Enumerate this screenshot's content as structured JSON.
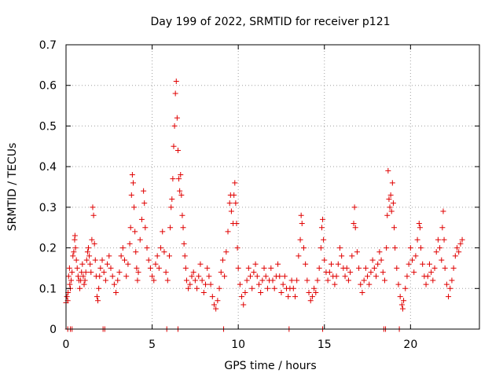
{
  "chart_data": {
    "type": "scatter",
    "title": "Day 199 of 2022, SRMTID for receiver p121",
    "xlabel": "GPS time / hours",
    "ylabel": "SRMTID / TECUs",
    "xlim": [
      0,
      24
    ],
    "ylim": [
      0,
      0.7
    ],
    "xticks": [
      0,
      5,
      10,
      15,
      20
    ],
    "xtick_labels": [
      "0",
      "5",
      "10",
      "15",
      "20"
    ],
    "yticks": [
      0,
      0.1,
      0.2,
      0.3,
      0.4,
      0.5,
      0.6,
      0.7
    ],
    "ytick_labels": [
      "0",
      "0.1",
      "0.2",
      "0.3",
      "0.4",
      "0.5",
      "0.6",
      "0.7"
    ],
    "grid": true,
    "marker": "plus",
    "marker_color": "#e00000",
    "series": [
      {
        "name": "SRMTID",
        "points": [
          [
            0.0,
            0.065
          ],
          [
            0.05,
            0.08
          ],
          [
            0.1,
            0.07
          ],
          [
            0.12,
            0.09
          ],
          [
            0.15,
            0.13
          ],
          [
            0.2,
            0.15
          ],
          [
            0.22,
            0.11
          ],
          [
            0.25,
            0.1
          ],
          [
            0.3,
            0.12
          ],
          [
            0.35,
            0.14
          ],
          [
            0.4,
            0.18
          ],
          [
            0.45,
            0.19
          ],
          [
            0.5,
            0.22
          ],
          [
            0.52,
            0.23
          ],
          [
            0.55,
            0.2
          ],
          [
            0.6,
            0.17
          ],
          [
            0.65,
            0.15
          ],
          [
            0.7,
            0.13
          ],
          [
            0.75,
            0.12
          ],
          [
            0.8,
            0.1
          ],
          [
            0.85,
            0.12
          ],
          [
            0.9,
            0.14
          ],
          [
            0.95,
            0.16
          ],
          [
            1.0,
            0.13
          ],
          [
            1.05,
            0.11
          ],
          [
            1.1,
            0.12
          ],
          [
            1.15,
            0.14
          ],
          [
            1.2,
            0.17
          ],
          [
            1.25,
            0.19
          ],
          [
            1.3,
            0.2
          ],
          [
            1.35,
            0.18
          ],
          [
            1.4,
            0.16
          ],
          [
            1.45,
            0.14
          ],
          [
            1.5,
            0.22
          ],
          [
            1.55,
            0.3
          ],
          [
            1.6,
            0.28
          ],
          [
            1.65,
            0.21
          ],
          [
            1.7,
            0.17
          ],
          [
            1.75,
            0.13
          ],
          [
            1.8,
            0.08
          ],
          [
            1.85,
            0.07
          ],
          [
            1.9,
            0.1
          ],
          [
            1.95,
            0.13
          ],
          [
            2.0,
            0.15
          ],
          [
            2.1,
            0.17
          ],
          [
            2.2,
            0.14
          ],
          [
            2.3,
            0.12
          ],
          [
            2.4,
            0.16
          ],
          [
            2.5,
            0.18
          ],
          [
            2.6,
            0.15
          ],
          [
            2.7,
            0.13
          ],
          [
            2.8,
            0.11
          ],
          [
            2.9,
            0.09
          ],
          [
            3.0,
            0.12
          ],
          [
            3.1,
            0.14
          ],
          [
            3.2,
            0.18
          ],
          [
            3.3,
            0.2
          ],
          [
            3.4,
            0.17
          ],
          [
            3.5,
            0.13
          ],
          [
            3.6,
            0.16
          ],
          [
            3.7,
            0.21
          ],
          [
            3.75,
            0.25
          ],
          [
            3.8,
            0.33
          ],
          [
            3.85,
            0.38
          ],
          [
            3.9,
            0.36
          ],
          [
            3.95,
            0.3
          ],
          [
            4.0,
            0.24
          ],
          [
            4.05,
            0.19
          ],
          [
            4.1,
            0.15
          ],
          [
            4.15,
            0.12
          ],
          [
            4.2,
            0.14
          ],
          [
            4.3,
            0.22
          ],
          [
            4.4,
            0.27
          ],
          [
            4.5,
            0.34
          ],
          [
            4.55,
            0.31
          ],
          [
            4.6,
            0.25
          ],
          [
            4.7,
            0.2
          ],
          [
            4.8,
            0.17
          ],
          [
            4.9,
            0.15
          ],
          [
            5.0,
            0.13
          ],
          [
            5.1,
            0.12
          ],
          [
            5.2,
            0.16
          ],
          [
            5.3,
            0.18
          ],
          [
            5.4,
            0.15
          ],
          [
            5.5,
            0.2
          ],
          [
            5.6,
            0.24
          ],
          [
            5.7,
            0.19
          ],
          [
            5.8,
            0.14
          ],
          [
            5.9,
            0.12
          ],
          [
            6.0,
            0.18
          ],
          [
            6.05,
            0.25
          ],
          [
            6.1,
            0.3
          ],
          [
            6.15,
            0.32
          ],
          [
            6.2,
            0.37
          ],
          [
            6.25,
            0.45
          ],
          [
            6.3,
            0.5
          ],
          [
            6.35,
            0.58
          ],
          [
            6.4,
            0.61
          ],
          [
            6.45,
            0.52
          ],
          [
            6.5,
            0.44
          ],
          [
            6.55,
            0.37
          ],
          [
            6.6,
            0.34
          ],
          [
            6.65,
            0.38
          ],
          [
            6.7,
            0.33
          ],
          [
            6.75,
            0.28
          ],
          [
            6.8,
            0.25
          ],
          [
            6.85,
            0.21
          ],
          [
            6.9,
            0.18
          ],
          [
            6.95,
            0.15
          ],
          [
            7.0,
            0.12
          ],
          [
            7.1,
            0.1
          ],
          [
            7.2,
            0.11
          ],
          [
            7.3,
            0.13
          ],
          [
            7.4,
            0.14
          ],
          [
            7.5,
            0.12
          ],
          [
            7.6,
            0.1
          ],
          [
            7.7,
            0.13
          ],
          [
            7.8,
            0.16
          ],
          [
            7.9,
            0.12
          ],
          [
            8.0,
            0.09
          ],
          [
            8.1,
            0.11
          ],
          [
            8.2,
            0.15
          ],
          [
            8.3,
            0.13
          ],
          [
            8.4,
            0.11
          ],
          [
            8.5,
            0.08
          ],
          [
            8.6,
            0.06
          ],
          [
            8.7,
            0.05
          ],
          [
            8.8,
            0.07
          ],
          [
            8.9,
            0.1
          ],
          [
            9.0,
            0.14
          ],
          [
            9.1,
            0.17
          ],
          [
            9.2,
            0.13
          ],
          [
            9.3,
            0.19
          ],
          [
            9.4,
            0.24
          ],
          [
            9.5,
            0.31
          ],
          [
            9.55,
            0.33
          ],
          [
            9.6,
            0.29
          ],
          [
            9.7,
            0.26
          ],
          [
            9.75,
            0.33
          ],
          [
            9.8,
            0.36
          ],
          [
            9.85,
            0.31
          ],
          [
            9.9,
            0.26
          ],
          [
            9.95,
            0.2
          ],
          [
            10.0,
            0.15
          ],
          [
            10.1,
            0.11
          ],
          [
            10.2,
            0.08
          ],
          [
            10.3,
            0.06
          ],
          [
            10.4,
            0.09
          ],
          [
            10.5,
            0.12
          ],
          [
            10.6,
            0.15
          ],
          [
            10.7,
            0.13
          ],
          [
            10.8,
            0.1
          ],
          [
            10.9,
            0.14
          ],
          [
            11.0,
            0.16
          ],
          [
            11.1,
            0.13
          ],
          [
            11.2,
            0.11
          ],
          [
            11.3,
            0.09
          ],
          [
            11.4,
            0.12
          ],
          [
            11.5,
            0.15
          ],
          [
            11.6,
            0.13
          ],
          [
            11.7,
            0.1
          ],
          [
            11.8,
            0.12
          ],
          [
            11.9,
            0.15
          ],
          [
            12.0,
            0.12
          ],
          [
            12.1,
            0.1
          ],
          [
            12.2,
            0.13
          ],
          [
            12.3,
            0.16
          ],
          [
            12.4,
            0.13
          ],
          [
            12.5,
            0.09
          ],
          [
            12.6,
            0.11
          ],
          [
            12.7,
            0.13
          ],
          [
            12.8,
            0.1
          ],
          [
            12.9,
            0.08
          ],
          [
            13.0,
            0.1
          ],
          [
            13.1,
            0.12
          ],
          [
            13.2,
            0.1
          ],
          [
            13.3,
            0.08
          ],
          [
            13.4,
            0.12
          ],
          [
            13.5,
            0.18
          ],
          [
            13.6,
            0.22
          ],
          [
            13.65,
            0.28
          ],
          [
            13.7,
            0.26
          ],
          [
            13.8,
            0.2
          ],
          [
            13.9,
            0.16
          ],
          [
            14.0,
            0.12
          ],
          [
            14.1,
            0.09
          ],
          [
            14.2,
            0.07
          ],
          [
            14.3,
            0.08
          ],
          [
            14.4,
            0.1
          ],
          [
            14.5,
            0.09
          ],
          [
            14.6,
            0.12
          ],
          [
            14.7,
            0.15
          ],
          [
            14.8,
            0.2
          ],
          [
            14.85,
            0.25
          ],
          [
            14.9,
            0.27
          ],
          [
            14.95,
            0.22
          ],
          [
            15.0,
            0.17
          ],
          [
            15.1,
            0.14
          ],
          [
            15.2,
            0.12
          ],
          [
            15.3,
            0.14
          ],
          [
            15.4,
            0.16
          ],
          [
            15.5,
            0.13
          ],
          [
            15.6,
            0.11
          ],
          [
            15.7,
            0.13
          ],
          [
            15.8,
            0.16
          ],
          [
            15.9,
            0.2
          ],
          [
            16.0,
            0.18
          ],
          [
            16.1,
            0.15
          ],
          [
            16.2,
            0.13
          ],
          [
            16.3,
            0.15
          ],
          [
            16.4,
            0.12
          ],
          [
            16.5,
            0.14
          ],
          [
            16.6,
            0.18
          ],
          [
            16.7,
            0.26
          ],
          [
            16.75,
            0.3
          ],
          [
            16.8,
            0.25
          ],
          [
            16.9,
            0.19
          ],
          [
            17.0,
            0.15
          ],
          [
            17.1,
            0.11
          ],
          [
            17.2,
            0.09
          ],
          [
            17.3,
            0.12
          ],
          [
            17.4,
            0.15
          ],
          [
            17.5,
            0.13
          ],
          [
            17.6,
            0.11
          ],
          [
            17.7,
            0.14
          ],
          [
            17.8,
            0.17
          ],
          [
            17.9,
            0.15
          ],
          [
            18.0,
            0.13
          ],
          [
            18.1,
            0.16
          ],
          [
            18.2,
            0.19
          ],
          [
            18.3,
            0.17
          ],
          [
            18.4,
            0.14
          ],
          [
            18.5,
            0.12
          ],
          [
            18.6,
            0.2
          ],
          [
            18.65,
            0.28
          ],
          [
            18.7,
            0.39
          ],
          [
            18.75,
            0.32
          ],
          [
            18.8,
            0.3
          ],
          [
            18.85,
            0.33
          ],
          [
            18.9,
            0.29
          ],
          [
            18.95,
            0.36
          ],
          [
            19.0,
            0.31
          ],
          [
            19.05,
            0.25
          ],
          [
            19.1,
            0.2
          ],
          [
            19.2,
            0.15
          ],
          [
            19.3,
            0.11
          ],
          [
            19.4,
            0.08
          ],
          [
            19.5,
            0.06
          ],
          [
            19.55,
            0.05
          ],
          [
            19.6,
            0.07
          ],
          [
            19.7,
            0.1
          ],
          [
            19.8,
            0.13
          ],
          [
            19.9,
            0.16
          ],
          [
            20.0,
            0.2
          ],
          [
            20.1,
            0.17
          ],
          [
            20.2,
            0.14
          ],
          [
            20.3,
            0.18
          ],
          [
            20.4,
            0.22
          ],
          [
            20.5,
            0.26
          ],
          [
            20.55,
            0.25
          ],
          [
            20.6,
            0.2
          ],
          [
            20.7,
            0.16
          ],
          [
            20.8,
            0.13
          ],
          [
            20.9,
            0.11
          ],
          [
            21.0,
            0.13
          ],
          [
            21.1,
            0.16
          ],
          [
            21.2,
            0.14
          ],
          [
            21.3,
            0.12
          ],
          [
            21.4,
            0.15
          ],
          [
            21.5,
            0.19
          ],
          [
            21.6,
            0.22
          ],
          [
            21.7,
            0.2
          ],
          [
            21.8,
            0.17
          ],
          [
            21.85,
            0.25
          ],
          [
            21.9,
            0.29
          ],
          [
            21.95,
            0.22
          ],
          [
            22.0,
            0.15
          ],
          [
            22.1,
            0.11
          ],
          [
            22.2,
            0.08
          ],
          [
            22.3,
            0.1
          ],
          [
            22.4,
            0.12
          ],
          [
            22.5,
            0.15
          ],
          [
            22.6,
            0.18
          ],
          [
            22.7,
            0.2
          ],
          [
            22.8,
            0.19
          ],
          [
            22.9,
            0.21
          ],
          [
            23.0,
            0.22
          ]
        ]
      }
    ],
    "zero_markers": [
      0.1,
      0.25,
      0.35,
      2.15,
      2.25,
      5.85,
      6.5,
      9.15,
      12.95,
      14.9,
      18.45,
      18.55,
      19.35
    ]
  }
}
